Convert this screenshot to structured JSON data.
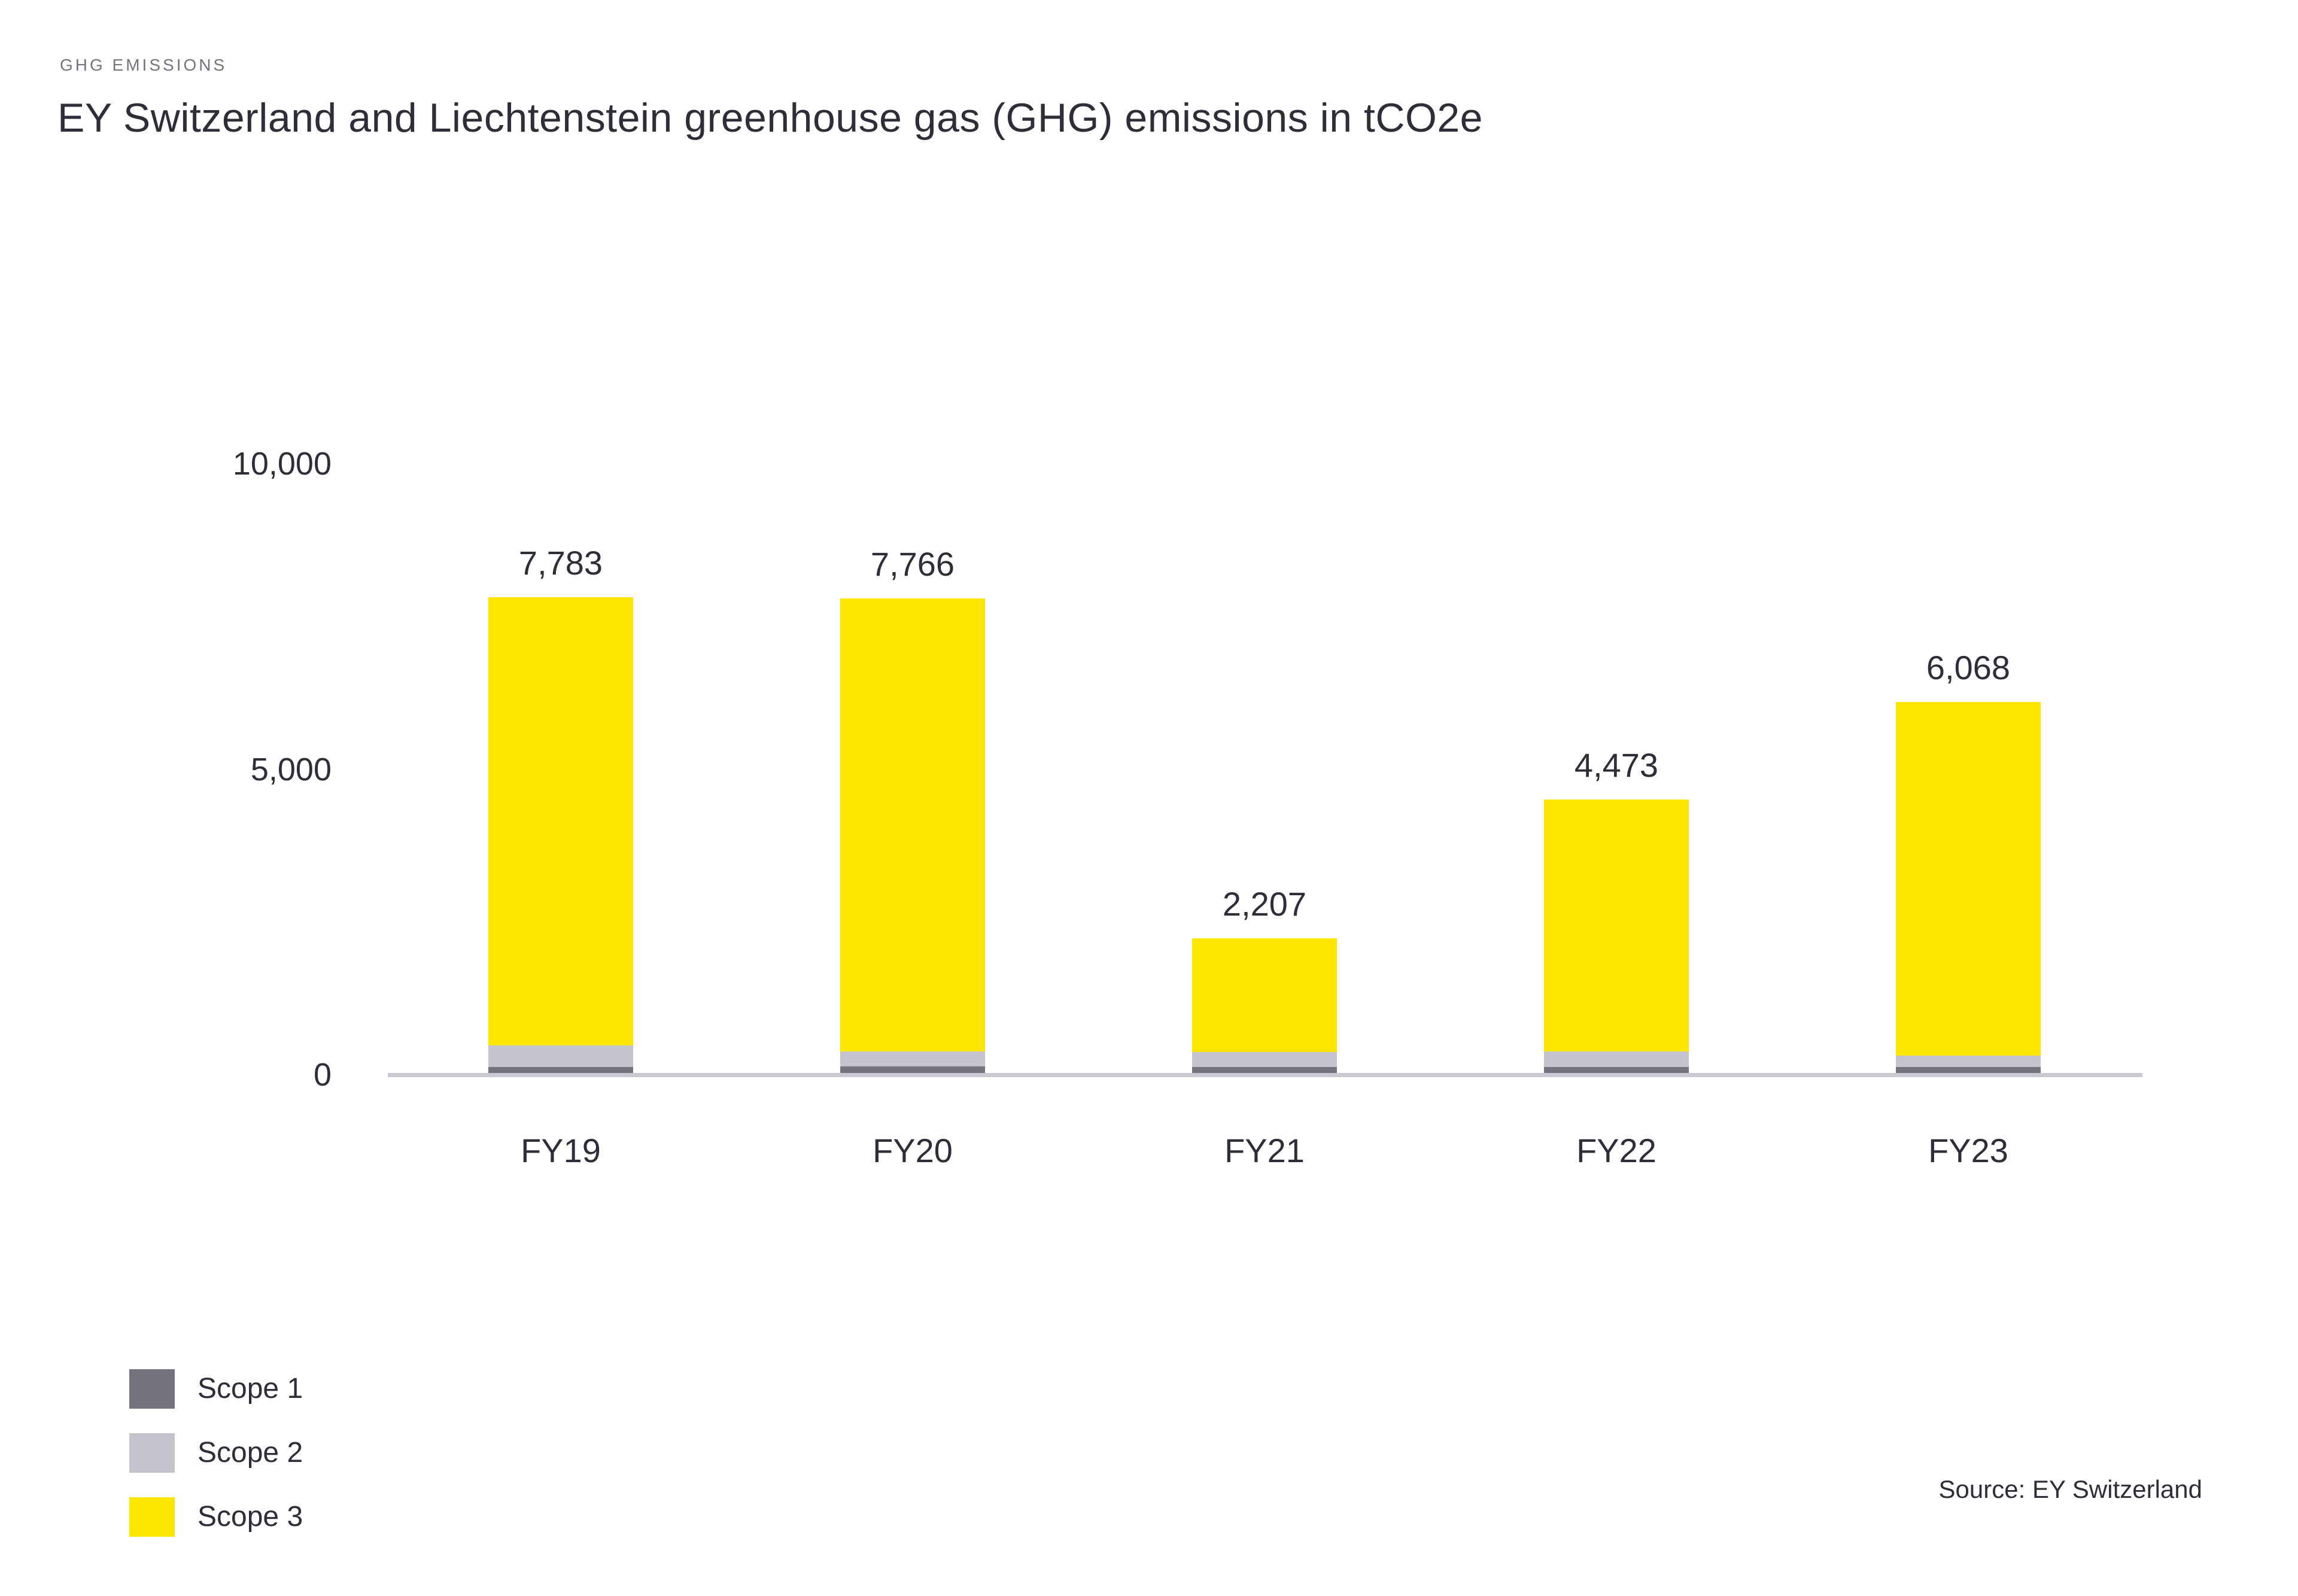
{
  "header": {
    "eyebrow": "GHG EMISSIONS",
    "title": "EY Switzerland and Liechtenstein greenhouse gas (GHG) emissions in tCO2e"
  },
  "source": "Source: EY Switzerland",
  "colors": {
    "scope1": "#747480",
    "scope2": "#C4C4CD",
    "scope3": "#FFE600",
    "axis_line": "#C9CAD2",
    "text_dark": "#2E2E38",
    "text_gray": "#747480",
    "background": "#FFFFFF"
  },
  "chart_data": {
    "type": "bar",
    "stacked": true,
    "title": "EY Switzerland and Liechtenstein greenhouse gas (GHG) emissions in tCO2e",
    "unit": "tCO2e",
    "categories": [
      "FY19",
      "FY20",
      "FY21",
      "FY22",
      "FY23"
    ],
    "series": [
      {
        "name": "Scope 1",
        "color": "#747480",
        "values": [
          100,
          105,
          95,
          100,
          95
        ]
      },
      {
        "name": "Scope 2",
        "color": "#C4C4CD",
        "values": [
          350,
          245,
          250,
          250,
          190
        ]
      },
      {
        "name": "Scope 3",
        "color": "#FFE600",
        "values": [
          7333,
          7416,
          1862,
          4123,
          5783
        ]
      }
    ],
    "totals": [
      7783,
      7766,
      2207,
      4473,
      6068
    ],
    "total_labels": [
      "7,783",
      "7,766",
      "2,207",
      "4,473",
      "6,068"
    ],
    "ylim": [
      0,
      10000
    ],
    "y_ticks": [
      {
        "value": 10000,
        "label": "10,000"
      },
      {
        "value": 5000,
        "label": "5,000"
      },
      {
        "value": 0,
        "label": "0"
      }
    ],
    "grid": false,
    "legend": [
      "Scope 1",
      "Scope 2",
      "Scope 3"
    ],
    "legend_position": "bottom-left"
  }
}
